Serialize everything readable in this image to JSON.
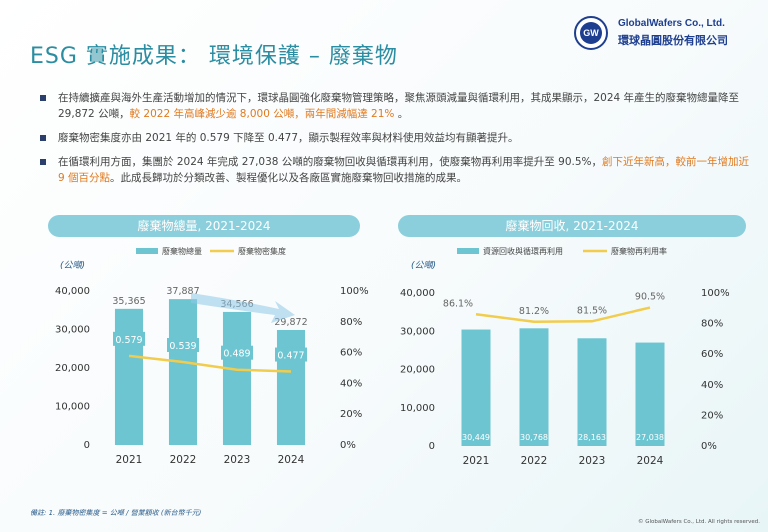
{
  "header": {
    "title": "ESG 實施成果： 環境保護 – 廢棄物",
    "logo_en": "GlobalWafers Co., Ltd.",
    "logo_zh": "環球晶圓股份有限公司",
    "logo_mark": "GW"
  },
  "bullets": [
    {
      "pre": "在持續擴產與海外生產活動增加的情況下，環球晶圓強化廢棄物管理策略，聚焦源頭減量與循環利用，其成果顯示，2024 年產生的廢棄物總量降至 29,872 公噸，",
      "hl": "較 2022 年高峰減少逾 8,000 公噸，兩年間減幅達 21%",
      "post": " 。"
    },
    {
      "pre": "廢棄物密集度亦由 2021 年的 0.579 下降至 0.477，顯示製程效率與材料使用效益均有顯著提升。",
      "hl": "",
      "post": ""
    },
    {
      "pre": "在循環利用方面，集團於 2024 年完成 27,038 公噸的廢棄物回收與循環再利用，使廢棄物再利用率提升至 90.5%，",
      "hl": "創下近年新高，較前一年增加近 9 個百分點",
      "post": "。此成長歸功於分類改善、製程優化以及各廠區實施廢棄物回收措施的成果。"
    }
  ],
  "chart_data": [
    {
      "type": "bar",
      "title": "廢棄物總量, 2021-2024",
      "unit_label": "(公噸)",
      "categories": [
        "2021",
        "2022",
        "2023",
        "2024"
      ],
      "series": [
        {
          "name": "廢棄物總量",
          "kind": "bar",
          "axis": "left",
          "values": [
            35365,
            37887,
            34566,
            29872
          ],
          "labels": [
            "35,365",
            "37,887",
            "34,566",
            "29,872"
          ]
        },
        {
          "name": "廢棄物密集度",
          "kind": "line",
          "axis": "right",
          "values": [
            0.579,
            0.539,
            0.489,
            0.477
          ],
          "labels": [
            "0.579",
            "0.539",
            "0.489",
            "0.477"
          ]
        }
      ],
      "left_axis": {
        "min": 0,
        "max": 40000,
        "ticks": [
          "0",
          "10,000",
          "20,000",
          "30,000",
          "40,000"
        ],
        "tick_values": [
          0,
          10000,
          20000,
          30000,
          40000
        ]
      },
      "right_axis": {
        "min": 0,
        "max": 1,
        "ticks": [
          "0%",
          "20%",
          "40%",
          "60%",
          "80%",
          "100%"
        ],
        "tick_values": [
          0,
          0.2,
          0.4,
          0.6,
          0.8,
          1.0
        ]
      },
      "colors": {
        "bar": "#6cc5d1",
        "line": "#f2cc4c"
      }
    },
    {
      "type": "bar",
      "title": "廢棄物回收, 2021-2024",
      "unit_label": "(公噸)",
      "categories": [
        "2021",
        "2022",
        "2023",
        "2024"
      ],
      "series": [
        {
          "name": "資源回收與循環再利用",
          "kind": "bar",
          "axis": "left",
          "values": [
            30449,
            30768,
            28163,
            27038
          ],
          "labels": [
            "30,449",
            "30,768",
            "28,163",
            "27,038"
          ]
        },
        {
          "name": "廢棄物再利用率",
          "kind": "line",
          "axis": "right",
          "values": [
            0.861,
            0.812,
            0.815,
            0.905
          ],
          "labels": [
            "86.1%",
            "81.2%",
            "81.5%",
            "90.5%"
          ]
        }
      ],
      "left_axis": {
        "min": 0,
        "max": 40000,
        "ticks": [
          "0",
          "10,000",
          "20,000",
          "30,000",
          "40,000"
        ],
        "tick_values": [
          0,
          10000,
          20000,
          30000,
          40000
        ]
      },
      "right_axis": {
        "min": 0,
        "max": 1,
        "ticks": [
          "0%",
          "20%",
          "40%",
          "60%",
          "80%",
          "100%"
        ],
        "tick_values": [
          0,
          0.2,
          0.4,
          0.6,
          0.8,
          1.0
        ]
      },
      "colors": {
        "bar": "#6cc5d1",
        "line": "#f2cc4c"
      }
    }
  ],
  "footnote": "備註: 1. 廢棄物密集度 = 公噸 / 營業額收 (新台幣千元)",
  "copyright": "© GlobalWafers Co., Ltd. All rights reserved."
}
